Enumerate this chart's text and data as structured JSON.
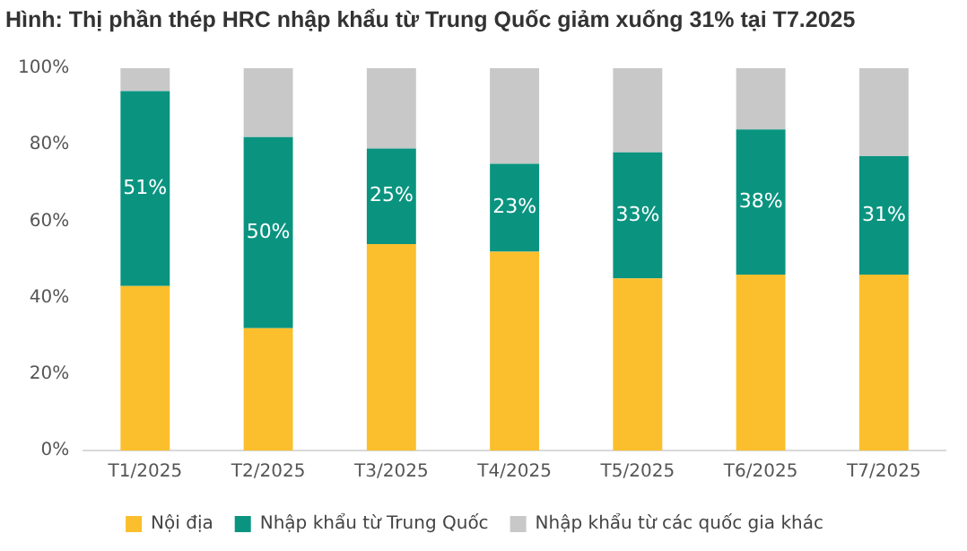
{
  "chart_data": {
    "type": "bar",
    "title": "Hình: Thị phần thép HRC nhập khẩu từ Trung Quốc giảm xuống 31% tại T7.2025",
    "categories": [
      "T1/2025",
      "T2/2025",
      "T3/2025",
      "T4/2025",
      "T5/2025",
      "T6/2025",
      "T7/2025"
    ],
    "stacked": true,
    "series": [
      {
        "name": "Nội địa",
        "color": "#fbbf2d",
        "values": [
          43,
          32,
          54,
          52,
          45,
          46,
          46
        ]
      },
      {
        "name": "Nhập khẩu từ Trung Quốc",
        "color": "#0a9480",
        "values": [
          51,
          50,
          25,
          23,
          33,
          38,
          31
        ],
        "value_labels": [
          "51%",
          "50%",
          "25%",
          "23%",
          "33%",
          "38%",
          "31%"
        ]
      },
      {
        "name": "Nhập khẩu từ các quốc gia khác",
        "color": "#c8c8c8",
        "values": [
          6,
          18,
          21,
          25,
          22,
          16,
          23
        ]
      }
    ],
    "ylim": [
      0,
      100
    ],
    "yticks": [
      {
        "value": 0,
        "label": "0%"
      },
      {
        "value": 20,
        "label": "20%"
      },
      {
        "value": 40,
        "label": "40%"
      },
      {
        "value": 60,
        "label": "60%"
      },
      {
        "value": 80,
        "label": "80%"
      },
      {
        "value": 100,
        "label": "100%"
      }
    ],
    "grid": false,
    "legend": "bottom"
  }
}
